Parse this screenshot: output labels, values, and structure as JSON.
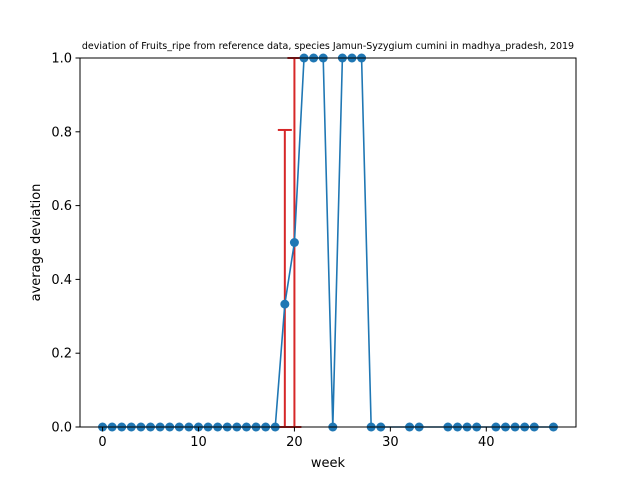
{
  "chart_data": {
    "type": "line",
    "title": "deviation of Fruits_ripe from reference data, species Jamun-Syzygium cumini in madhya_pradesh, 2019",
    "xlabel": "week",
    "ylabel": "average deviation",
    "xlim": [
      -2.35,
      49.35
    ],
    "ylim": [
      0,
      1
    ],
    "xticks": [
      0,
      10,
      20,
      30,
      40
    ],
    "yticks": [
      0.0,
      0.2,
      0.4,
      0.6,
      0.8,
      1.0
    ],
    "ytick_labels": [
      "0.0",
      "0.2",
      "0.4",
      "0.6",
      "0.8",
      "1.0"
    ],
    "grid": false,
    "legend": "none",
    "line_color": "#1f77b4",
    "errorbar_color": "#d62728",
    "series": [
      {
        "x": [
          0,
          1,
          2,
          3,
          4,
          5,
          6,
          7,
          8,
          9,
          10,
          11,
          12,
          13,
          14,
          15,
          16,
          17,
          18,
          19,
          20,
          21,
          22,
          23,
          24,
          25,
          26,
          27,
          28,
          29,
          32,
          33,
          36,
          37,
          38,
          39,
          41,
          42,
          43,
          44,
          45,
          47
        ],
        "y": [
          0,
          0,
          0,
          0,
          0,
          0,
          0,
          0,
          0,
          0,
          0,
          0,
          0,
          0,
          0,
          0,
          0,
          0,
          0,
          0.333,
          0.5,
          1,
          1,
          1,
          0,
          1,
          1,
          1,
          0,
          0,
          0,
          0,
          0,
          0,
          0,
          0,
          0,
          0,
          0,
          0,
          0,
          0
        ]
      }
    ],
    "error_bars": [
      {
        "x": 19,
        "y": 0.333,
        "lower": 0,
        "upper": 0.805
      },
      {
        "x": 20,
        "y": 0.5,
        "lower": 0,
        "upper": 1.0
      }
    ]
  }
}
